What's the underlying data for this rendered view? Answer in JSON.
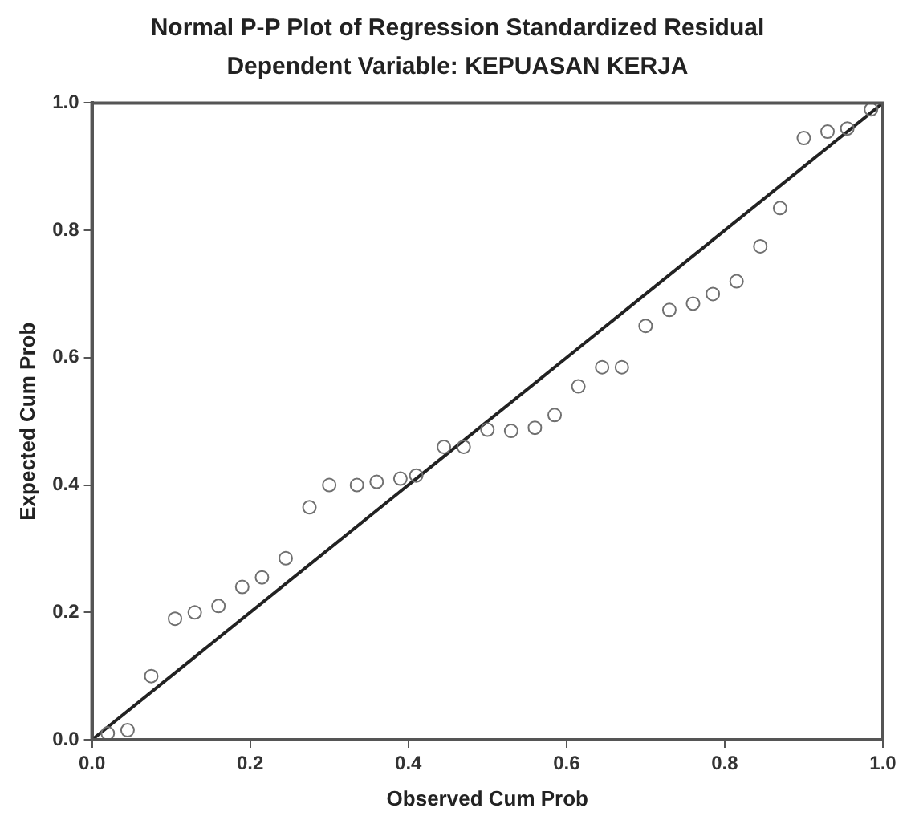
{
  "chart_data": {
    "type": "scatter",
    "title": "Normal P-P Plot of Regression Standardized Residual",
    "subtitle": "Dependent Variable: KEPUASAN KERJA",
    "xlabel": "Observed Cum Prob",
    "ylabel": "Expected Cum Prob",
    "xlim": [
      0,
      1
    ],
    "ylim": [
      0,
      1
    ],
    "xticks": [
      {
        "value": 0,
        "label": "0.0"
      },
      {
        "value": 0.2,
        "label": "0.2"
      },
      {
        "value": 0.4,
        "label": "0.4"
      },
      {
        "value": 0.6,
        "label": "0.6"
      },
      {
        "value": 0.8,
        "label": "0.8"
      },
      {
        "value": 1,
        "label": "1.0"
      }
    ],
    "yticks": [
      {
        "value": 0,
        "label": "0.0"
      },
      {
        "value": 0.2,
        "label": "0.2"
      },
      {
        "value": 0.4,
        "label": "0.4"
      },
      {
        "value": 0.6,
        "label": "0.6"
      },
      {
        "value": 0.8,
        "label": "0.8"
      },
      {
        "value": 1,
        "label": "1.0"
      }
    ],
    "grid": false,
    "legend": false,
    "marker": "circle",
    "series": [
      {
        "color": "#707070",
        "x": [
          0.02,
          0.045,
          0.075,
          0.105,
          0.13,
          0.16,
          0.19,
          0.215,
          0.245,
          0.275,
          0.3,
          0.335,
          0.36,
          0.39,
          0.41,
          0.445,
          0.47,
          0.5,
          0.53,
          0.56,
          0.585,
          0.615,
          0.645,
          0.67,
          0.7,
          0.73,
          0.76,
          0.785,
          0.815,
          0.845,
          0.87,
          0.9,
          0.93,
          0.955,
          0.985
        ],
        "values": [
          0.01,
          0.015,
          0.1,
          0.19,
          0.2,
          0.21,
          0.24,
          0.255,
          0.285,
          0.365,
          0.4,
          0.4,
          0.405,
          0.41,
          0.415,
          0.46,
          0.46,
          0.487,
          0.485,
          0.49,
          0.51,
          0.555,
          0.585,
          0.585,
          0.65,
          0.675,
          0.685,
          0.7,
          0.72,
          0.775,
          0.835,
          0.945,
          0.955,
          0.96,
          0.99
        ]
      },
      {
        "type": "line",
        "color": "#222222",
        "x": [
          0,
          1
        ],
        "values": [
          0,
          1
        ],
        "marker": "none",
        "line_style": "solid"
      }
    ]
  }
}
